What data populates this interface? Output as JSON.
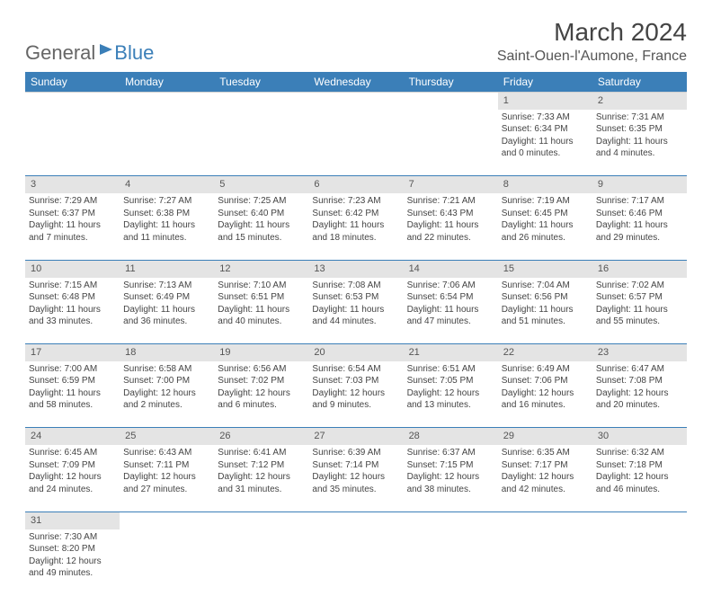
{
  "logo": {
    "part1": "General",
    "part2": "Blue"
  },
  "title": "March 2024",
  "location": "Saint-Ouen-l'Aumone, France",
  "colors": {
    "header_bg": "#3b7fb8",
    "header_fg": "#ffffff",
    "daynum_bg": "#e4e4e4",
    "rule": "#3b7fb8",
    "text": "#444444"
  },
  "fonts": {
    "title_pt": 28,
    "location_pt": 16,
    "th_pt": 12,
    "daynum_pt": 11,
    "cell_pt": 10
  },
  "columns": [
    "Sunday",
    "Monday",
    "Tuesday",
    "Wednesday",
    "Thursday",
    "Friday",
    "Saturday"
  ],
  "weeks": [
    [
      null,
      null,
      null,
      null,
      null,
      {
        "n": "1",
        "sunrise": "7:33 AM",
        "sunset": "6:34 PM",
        "day_h": 11,
        "day_m": 0
      },
      {
        "n": "2",
        "sunrise": "7:31 AM",
        "sunset": "6:35 PM",
        "day_h": 11,
        "day_m": 4
      }
    ],
    [
      {
        "n": "3",
        "sunrise": "7:29 AM",
        "sunset": "6:37 PM",
        "day_h": 11,
        "day_m": 7
      },
      {
        "n": "4",
        "sunrise": "7:27 AM",
        "sunset": "6:38 PM",
        "day_h": 11,
        "day_m": 11
      },
      {
        "n": "5",
        "sunrise": "7:25 AM",
        "sunset": "6:40 PM",
        "day_h": 11,
        "day_m": 15
      },
      {
        "n": "6",
        "sunrise": "7:23 AM",
        "sunset": "6:42 PM",
        "day_h": 11,
        "day_m": 18
      },
      {
        "n": "7",
        "sunrise": "7:21 AM",
        "sunset": "6:43 PM",
        "day_h": 11,
        "day_m": 22
      },
      {
        "n": "8",
        "sunrise": "7:19 AM",
        "sunset": "6:45 PM",
        "day_h": 11,
        "day_m": 26
      },
      {
        "n": "9",
        "sunrise": "7:17 AM",
        "sunset": "6:46 PM",
        "day_h": 11,
        "day_m": 29
      }
    ],
    [
      {
        "n": "10",
        "sunrise": "7:15 AM",
        "sunset": "6:48 PM",
        "day_h": 11,
        "day_m": 33
      },
      {
        "n": "11",
        "sunrise": "7:13 AM",
        "sunset": "6:49 PM",
        "day_h": 11,
        "day_m": 36
      },
      {
        "n": "12",
        "sunrise": "7:10 AM",
        "sunset": "6:51 PM",
        "day_h": 11,
        "day_m": 40
      },
      {
        "n": "13",
        "sunrise": "7:08 AM",
        "sunset": "6:53 PM",
        "day_h": 11,
        "day_m": 44
      },
      {
        "n": "14",
        "sunrise": "7:06 AM",
        "sunset": "6:54 PM",
        "day_h": 11,
        "day_m": 47
      },
      {
        "n": "15",
        "sunrise": "7:04 AM",
        "sunset": "6:56 PM",
        "day_h": 11,
        "day_m": 51
      },
      {
        "n": "16",
        "sunrise": "7:02 AM",
        "sunset": "6:57 PM",
        "day_h": 11,
        "day_m": 55
      }
    ],
    [
      {
        "n": "17",
        "sunrise": "7:00 AM",
        "sunset": "6:59 PM",
        "day_h": 11,
        "day_m": 58
      },
      {
        "n": "18",
        "sunrise": "6:58 AM",
        "sunset": "7:00 PM",
        "day_h": 12,
        "day_m": 2
      },
      {
        "n": "19",
        "sunrise": "6:56 AM",
        "sunset": "7:02 PM",
        "day_h": 12,
        "day_m": 6
      },
      {
        "n": "20",
        "sunrise": "6:54 AM",
        "sunset": "7:03 PM",
        "day_h": 12,
        "day_m": 9
      },
      {
        "n": "21",
        "sunrise": "6:51 AM",
        "sunset": "7:05 PM",
        "day_h": 12,
        "day_m": 13
      },
      {
        "n": "22",
        "sunrise": "6:49 AM",
        "sunset": "7:06 PM",
        "day_h": 12,
        "day_m": 16
      },
      {
        "n": "23",
        "sunrise": "6:47 AM",
        "sunset": "7:08 PM",
        "day_h": 12,
        "day_m": 20
      }
    ],
    [
      {
        "n": "24",
        "sunrise": "6:45 AM",
        "sunset": "7:09 PM",
        "day_h": 12,
        "day_m": 24
      },
      {
        "n": "25",
        "sunrise": "6:43 AM",
        "sunset": "7:11 PM",
        "day_h": 12,
        "day_m": 27
      },
      {
        "n": "26",
        "sunrise": "6:41 AM",
        "sunset": "7:12 PM",
        "day_h": 12,
        "day_m": 31
      },
      {
        "n": "27",
        "sunrise": "6:39 AM",
        "sunset": "7:14 PM",
        "day_h": 12,
        "day_m": 35
      },
      {
        "n": "28",
        "sunrise": "6:37 AM",
        "sunset": "7:15 PM",
        "day_h": 12,
        "day_m": 38
      },
      {
        "n": "29",
        "sunrise": "6:35 AM",
        "sunset": "7:17 PM",
        "day_h": 12,
        "day_m": 42
      },
      {
        "n": "30",
        "sunrise": "6:32 AM",
        "sunset": "7:18 PM",
        "day_h": 12,
        "day_m": 46
      }
    ],
    [
      {
        "n": "31",
        "sunrise": "7:30 AM",
        "sunset": "8:20 PM",
        "day_h": 12,
        "day_m": 49
      },
      null,
      null,
      null,
      null,
      null,
      null
    ]
  ],
  "labels": {
    "sunrise": "Sunrise:",
    "sunset": "Sunset:",
    "daylight_prefix": "Daylight:",
    "hours_word": "hours",
    "and_word": "and",
    "minutes_word": "minutes."
  }
}
